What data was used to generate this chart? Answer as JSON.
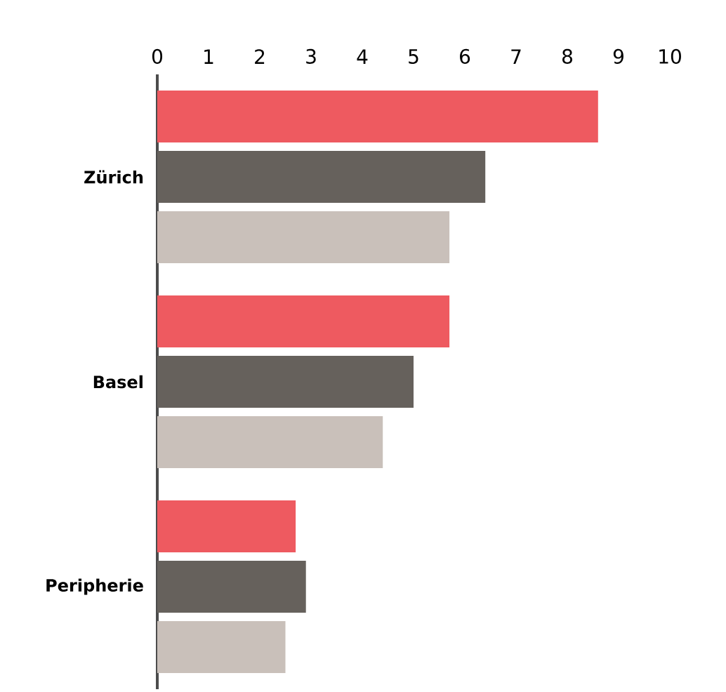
{
  "chart_data": {
    "type": "bar",
    "orientation": "horizontal",
    "categories": [
      "Zürich",
      "Basel",
      "Peripherie"
    ],
    "series": [
      {
        "color": "#ee5a60",
        "values": [
          8.6,
          5.7,
          2.7
        ]
      },
      {
        "color": "#66615c",
        "values": [
          6.4,
          5.0,
          2.9
        ]
      },
      {
        "color": "#c9c0ba",
        "values": [
          5.7,
          4.4,
          2.5
        ]
      }
    ],
    "xlim": [
      0,
      10
    ],
    "xticks": [
      0,
      1,
      2,
      3,
      4,
      5,
      6,
      7,
      8,
      9,
      10
    ]
  }
}
